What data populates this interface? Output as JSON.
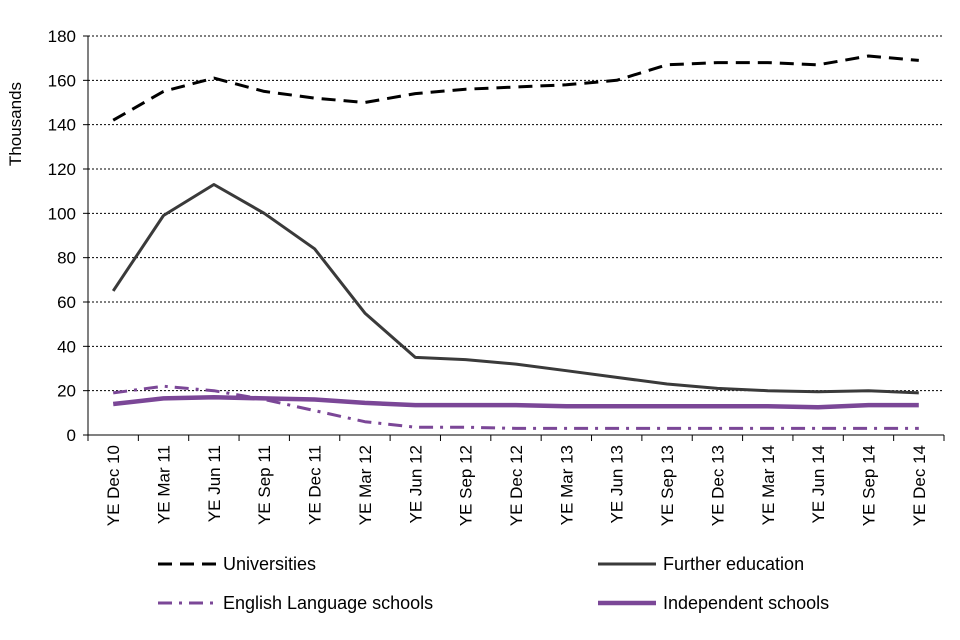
{
  "chart_data": {
    "type": "line",
    "ylabel": "Thousands",
    "ylim": [
      0,
      180
    ],
    "yticks": [
      0,
      20,
      40,
      60,
      80,
      100,
      120,
      140,
      160,
      180
    ],
    "grid": "horizontal-dotted",
    "legend_position": "bottom",
    "categories": [
      "YE Dec 10",
      "YE Mar 11",
      "YE Jun 11",
      "YE Sep 11",
      "YE Dec 11",
      "YE Mar 12",
      "YE Jun 12",
      "YE Sep 12",
      "YE Dec 12",
      "YE Mar 13",
      "YE Jun 13",
      "YE Sep 13",
      "YE Dec 13",
      "YE Mar 14",
      "YE Jun 14",
      "YE Sep 14",
      "YE Dec 14"
    ],
    "series": [
      {
        "name": "Universities",
        "color": "#000000",
        "style": "dash",
        "values": [
          142,
          155,
          161,
          155,
          152,
          150,
          154,
          156,
          157,
          158,
          160,
          167,
          168,
          168,
          167,
          171,
          169
        ]
      },
      {
        "name": "Further education",
        "color": "#3a3a3a",
        "style": "solid",
        "values": [
          65,
          99,
          113,
          100,
          84,
          55,
          35,
          34,
          32,
          29,
          26,
          23,
          21,
          20,
          19.5,
          20,
          19
        ]
      },
      {
        "name": "English Language schools",
        "color": "#7b4797",
        "style": "dashdot",
        "values": [
          19,
          22,
          20,
          16,
          11,
          6,
          3.5,
          3.5,
          3,
          3,
          3,
          3,
          3,
          3,
          3,
          3,
          3
        ]
      },
      {
        "name": "Independent schools",
        "color": "#7b4797",
        "style": "thick",
        "values": [
          14,
          16.5,
          17,
          16.5,
          16,
          14.5,
          13.5,
          13.5,
          13.5,
          13,
          13,
          13,
          13,
          13,
          12.5,
          13.5,
          13.5
        ]
      }
    ]
  }
}
